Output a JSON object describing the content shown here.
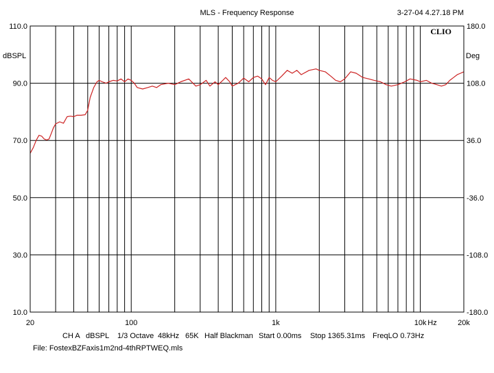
{
  "header": {
    "title": "MLS - Frequency Response",
    "timestamp": "3-27-04 4.27.18 PM",
    "brand": "CLIO"
  },
  "footer": {
    "settings": [
      "CH A",
      "dBSPL",
      "1/3 Octave",
      "48kHz",
      "65K",
      "Half Blackman",
      "Start 0.00ms",
      "Stop 1365.31ms",
      "FreqLO 0.73Hz"
    ],
    "file": "File: FostexBZFaxis1m2nd-4thRPTWEQ.mls"
  },
  "colors": {
    "trace": "#cc2222",
    "grid": "#000000",
    "background": "#ffffff"
  },
  "chart_data": {
    "type": "line",
    "title": "MLS - Frequency Response",
    "x_scale": "log",
    "xlim": [
      20,
      20000
    ],
    "ylim": [
      10,
      110
    ],
    "ylim_right": [
      -180,
      180
    ],
    "grid": true,
    "xlabel": "Hz",
    "ylabel": "dBSPL",
    "ylabel_right": "Deg",
    "x_tick_labels": [
      {
        "value": 20,
        "label": "20"
      },
      {
        "value": 100,
        "label": "100"
      },
      {
        "value": 1000,
        "label": "1k"
      },
      {
        "value": 10000,
        "label": "10k"
      },
      {
        "value": 20000,
        "label": "20k"
      }
    ],
    "y_ticks_left": [
      {
        "value": 10,
        "label": "10.0"
      },
      {
        "value": 30,
        "label": "30.0"
      },
      {
        "value": 50,
        "label": "50.0"
      },
      {
        "value": 70,
        "label": "70.0"
      },
      {
        "value": 90,
        "label": "90.0"
      },
      {
        "value": 110,
        "label": "110.0"
      }
    ],
    "y_ticks_right": [
      {
        "value": -180,
        "label": "-180.0"
      },
      {
        "value": -108,
        "label": "-108.0"
      },
      {
        "value": -36,
        "label": "-36.0"
      },
      {
        "value": 36,
        "label": "36.0"
      },
      {
        "value": 108,
        "label": "108.0"
      },
      {
        "value": 180,
        "label": "180.0"
      }
    ],
    "series": [
      {
        "x": [
          20,
          21,
          22,
          23,
          24,
          25,
          26,
          27,
          28,
          29,
          30,
          32,
          34,
          36,
          38,
          40,
          42,
          45,
          48,
          50,
          52,
          55,
          58,
          60,
          63,
          67,
          70,
          75,
          80,
          85,
          90,
          95,
          100,
          105,
          110,
          120,
          130,
          140,
          150,
          160,
          180,
          200,
          220,
          250,
          280,
          300,
          330,
          350,
          380,
          400,
          430,
          450,
          480,
          500,
          550,
          600,
          650,
          700,
          750,
          800,
          850,
          900,
          950,
          1000,
          1100,
          1200,
          1300,
          1400,
          1500,
          1700,
          1900,
          2000,
          2200,
          2400,
          2600,
          2800,
          3000,
          3300,
          3600,
          4000,
          4400,
          4800,
          5300,
          5800,
          6300,
          7000,
          7800,
          8500,
          9500,
          10000,
          11000,
          12000,
          13000,
          14000,
          15000,
          16000,
          17000,
          18000,
          19000,
          20000
        ],
        "values": [
          65.5,
          67.5,
          70.0,
          71.8,
          71.5,
          70.5,
          70.2,
          70.5,
          72.5,
          74.5,
          75.8,
          76.5,
          76.0,
          78.3,
          78.5,
          78.3,
          78.8,
          78.8,
          79.0,
          80.5,
          85.0,
          88.5,
          90.5,
          91.0,
          90.5,
          90.0,
          90.5,
          91.0,
          90.8,
          91.5,
          90.5,
          91.5,
          91.0,
          90.0,
          88.5,
          88.0,
          88.5,
          89.0,
          88.5,
          89.5,
          90.0,
          89.5,
          90.5,
          91.5,
          89.0,
          89.5,
          91.0,
          89.0,
          90.5,
          89.5,
          91.0,
          92.0,
          90.5,
          89.0,
          90.0,
          91.8,
          90.5,
          92.0,
          92.5,
          91.5,
          89.5,
          92.0,
          91.0,
          90.5,
          92.5,
          94.5,
          93.5,
          94.5,
          93.0,
          94.5,
          95.0,
          94.5,
          94.0,
          92.5,
          91.0,
          90.5,
          91.5,
          94.0,
          93.5,
          92.0,
          91.5,
          91.0,
          90.5,
          89.5,
          89.0,
          89.5,
          90.5,
          91.5,
          91.0,
          90.5,
          91.0,
          90.0,
          89.5,
          89.0,
          89.5,
          91.0,
          92.0,
          93.0,
          93.5,
          94.0
        ]
      }
    ]
  }
}
